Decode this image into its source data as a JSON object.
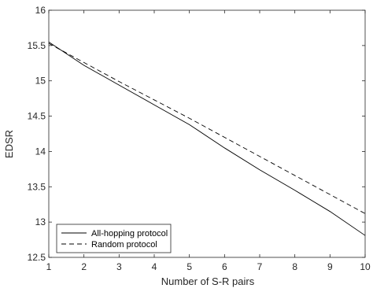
{
  "chart_data": {
    "type": "line",
    "title": "",
    "xlabel": "Number of S-R pairs",
    "ylabel": "EDSR",
    "xlim": [
      1,
      10
    ],
    "ylim": [
      12.5,
      16
    ],
    "xticks": [
      1,
      2,
      3,
      4,
      5,
      6,
      7,
      8,
      9,
      10
    ],
    "yticks": [
      12.5,
      13,
      13.5,
      14,
      14.5,
      15,
      15.5,
      16
    ],
    "xtick_labels": [
      "1",
      "2",
      "3",
      "4",
      "5",
      "6",
      "7",
      "8",
      "9",
      "10"
    ],
    "ytick_labels": [
      "12.5",
      "13",
      "13.5",
      "14",
      "14.5",
      "15",
      "15.5",
      "16"
    ],
    "grid": false,
    "legend_position": "bottom-left",
    "x": [
      1,
      2,
      3,
      4,
      5,
      6,
      7,
      8,
      9,
      10
    ],
    "series": [
      {
        "name": "All-hopping protocol",
        "style": "solid",
        "color": "#000000",
        "values": [
          15.55,
          15.22,
          14.94,
          14.66,
          14.38,
          14.05,
          13.74,
          13.45,
          13.15,
          12.81
        ]
      },
      {
        "name": "Random protocol",
        "style": "dashed",
        "color": "#000000",
        "values": [
          15.53,
          15.26,
          14.99,
          14.73,
          14.47,
          14.2,
          13.93,
          13.66,
          13.39,
          13.12
        ]
      }
    ]
  }
}
